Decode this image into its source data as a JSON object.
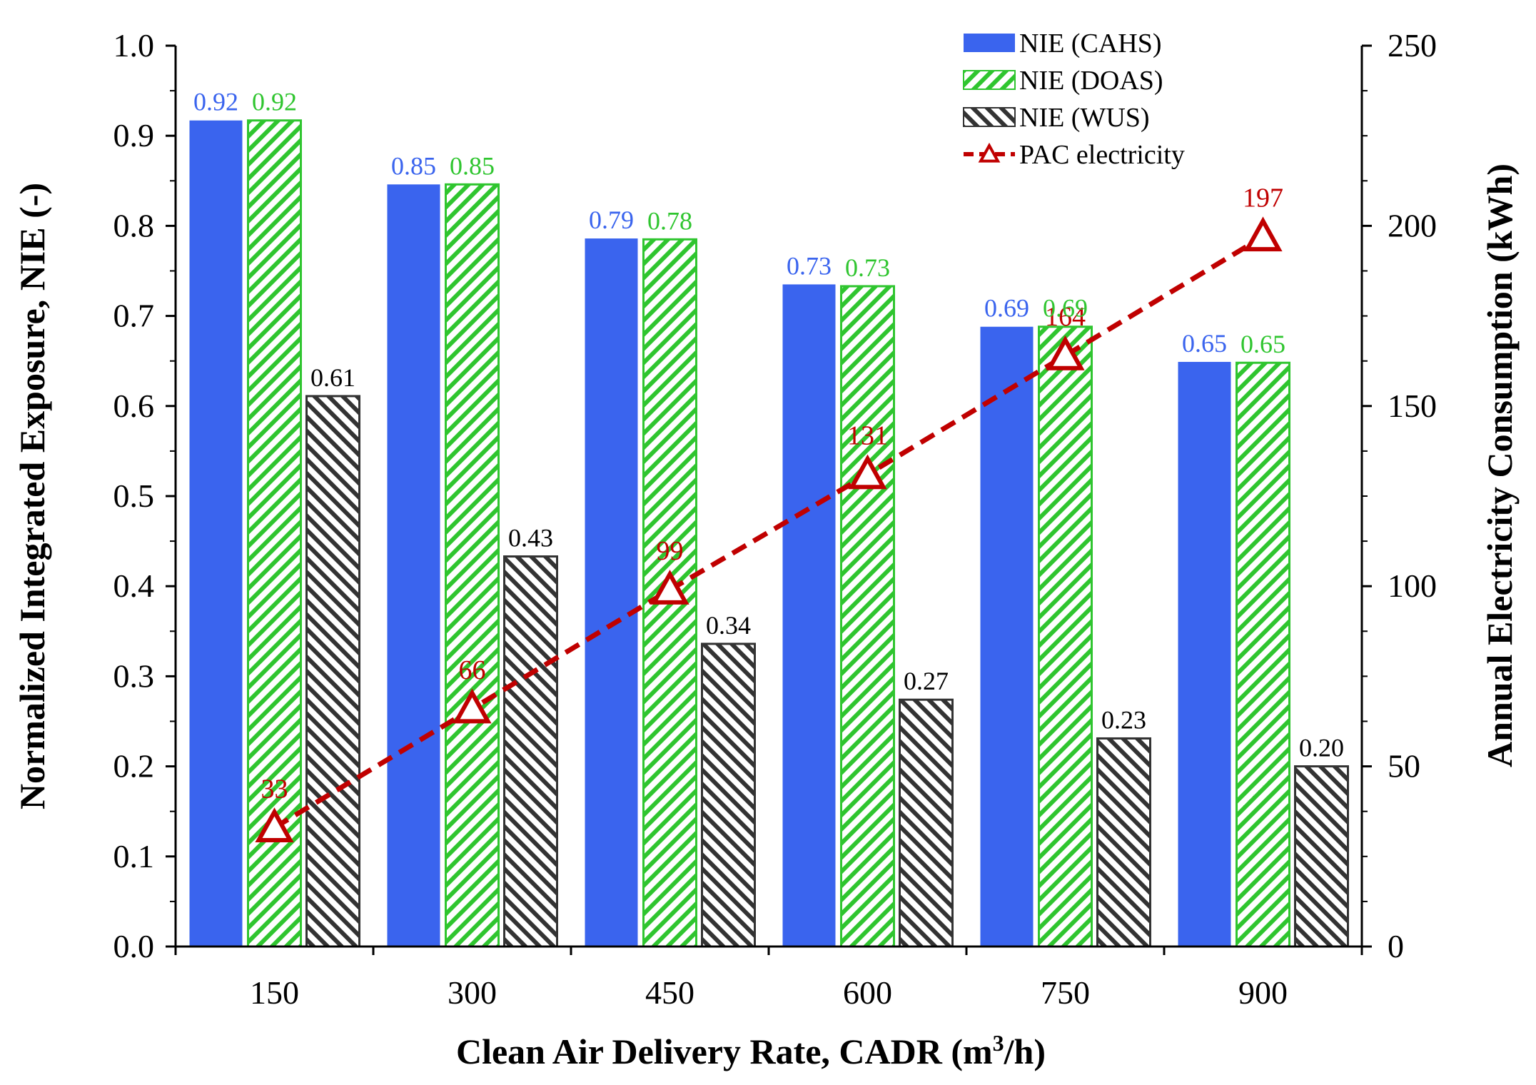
{
  "chart_data": {
    "type": "bar",
    "xlabel_prefix": "Clean Air Delivery Rate, CADR (m",
    "xlabel_sup": "3",
    "xlabel_suffix": "/h)",
    "ylabel": "Normalized Integrated Exposure, NIE (-)",
    "y2label": "Annual Electricity Consumption (kWh)",
    "categories": [
      "150",
      "300",
      "450",
      "600",
      "750",
      "900"
    ],
    "ylim": [
      0,
      1.0
    ],
    "yticks": [
      "0.0",
      "0.1",
      "0.2",
      "0.3",
      "0.4",
      "0.5",
      "0.6",
      "0.7",
      "0.8",
      "0.9",
      "1.0"
    ],
    "y2lim": [
      0,
      250
    ],
    "y2ticks": [
      "0",
      "50",
      "100",
      "150",
      "200",
      "250"
    ],
    "series": [
      {
        "name": "NIE (CAHS)",
        "type": "bar",
        "color": "#3a64ee",
        "pattern": "solid",
        "label_color": "#3a64ee",
        "values": [
          0.917,
          0.846,
          0.786,
          0.735,
          0.688,
          0.649
        ],
        "labels": [
          "0.92",
          "0.85",
          "0.79",
          "0.73",
          "0.69",
          "0.65"
        ]
      },
      {
        "name": "NIE (DOAS)",
        "type": "bar",
        "color": "#2fc52f",
        "pattern": "hatch",
        "label_color": "#2fc52f",
        "values": [
          0.917,
          0.846,
          0.785,
          0.733,
          0.688,
          0.648
        ],
        "labels": [
          "0.92",
          "0.85",
          "0.78",
          "0.73",
          "0.69",
          "0.65"
        ]
      },
      {
        "name": "NIE (WUS)",
        "type": "bar",
        "color": "#333333",
        "pattern": "hatch-dark",
        "label_color": "#000000",
        "values": [
          0.611,
          0.433,
          0.336,
          0.274,
          0.231,
          0.2
        ],
        "labels": [
          "0.61",
          "0.43",
          "0.34",
          "0.27",
          "0.23",
          "0.20"
        ]
      },
      {
        "name": "PAC electricity",
        "type": "line",
        "axis": "right",
        "color": "#c00000",
        "label_color": "#c00000",
        "values": [
          33,
          66,
          99,
          131,
          164,
          197
        ],
        "labels": [
          "33",
          "66",
          "99",
          "131",
          "164",
          "197"
        ]
      }
    ],
    "legend": "top-right"
  }
}
